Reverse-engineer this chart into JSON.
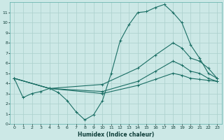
{
  "xlabel": "Humidex (Indice chaleur)",
  "bg_color": "#cce8e6",
  "line_color": "#1a6e64",
  "grid_color": "#aacfcc",
  "line1_x": [
    0,
    1,
    2,
    3,
    4,
    5,
    6,
    7,
    8,
    9,
    10,
    11,
    12,
    13,
    14,
    15,
    16,
    17,
    18,
    19,
    20,
    21,
    22,
    23
  ],
  "line1_y": [
    4.5,
    2.6,
    3.0,
    3.2,
    3.5,
    3.1,
    2.3,
    1.2,
    0.4,
    0.9,
    2.3,
    5.0,
    8.2,
    9.8,
    11.0,
    11.1,
    11.5,
    11.8,
    11.0,
    10.0,
    7.8,
    6.5,
    5.0,
    4.5
  ],
  "line2_x": [
    0,
    4,
    10,
    14,
    16,
    18,
    19,
    20,
    21,
    22,
    23
  ],
  "line2_y": [
    4.5,
    3.5,
    3.9,
    5.5,
    6.8,
    8.0,
    7.5,
    6.5,
    6.2,
    5.5,
    4.5
  ],
  "line3_x": [
    0,
    4,
    10,
    14,
    16,
    18,
    19,
    20,
    21,
    22,
    23
  ],
  "line3_y": [
    4.5,
    3.5,
    3.2,
    4.2,
    5.2,
    6.2,
    5.8,
    5.2,
    5.0,
    4.5,
    4.2
  ],
  "line4_x": [
    0,
    4,
    10,
    14,
    16,
    18,
    19,
    20,
    21,
    22,
    23
  ],
  "line4_y": [
    4.5,
    3.5,
    3.0,
    3.8,
    4.4,
    5.0,
    4.8,
    4.5,
    4.4,
    4.3,
    4.2
  ],
  "ylim": [
    0,
    12
  ],
  "xlim": [
    -0.5,
    23.5
  ],
  "yticks": [
    0,
    1,
    2,
    3,
    4,
    5,
    6,
    7,
    8,
    9,
    10,
    11
  ],
  "xticks": [
    0,
    1,
    2,
    3,
    4,
    5,
    6,
    7,
    8,
    9,
    10,
    11,
    12,
    13,
    14,
    15,
    16,
    17,
    18,
    19,
    20,
    21,
    22,
    23
  ]
}
